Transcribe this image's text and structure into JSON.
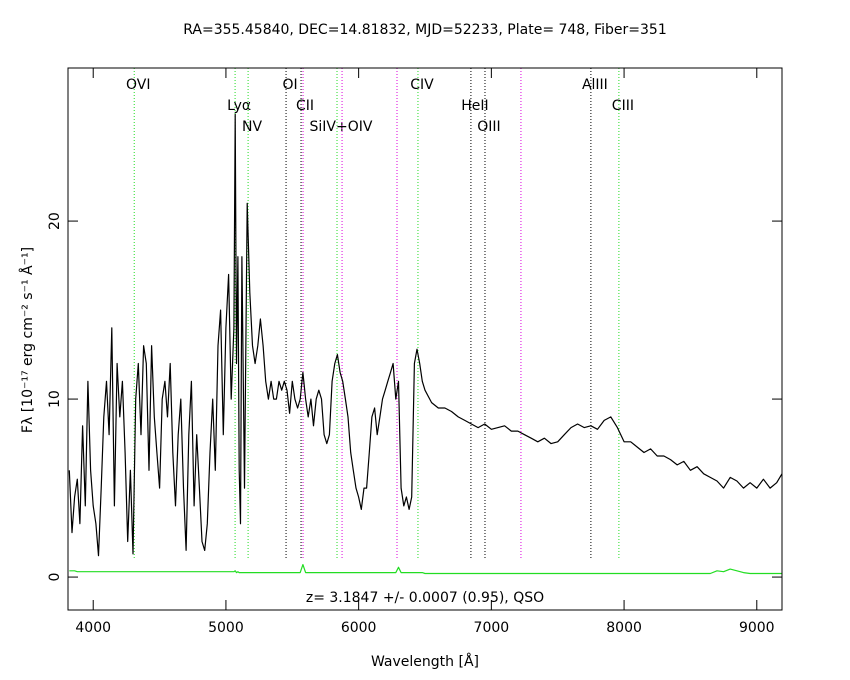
{
  "chart_data": {
    "type": "line",
    "title": "RA=355.45840, DEC=14.81832, MJD=52233, Plate=  748, Fiber=351",
    "x_label": "Wavelength [Å]",
    "y_label": "Fλ [10⁻¹⁷ erg cm⁻² s⁻¹ Å⁻¹]",
    "annotation": "z= 3.1847 +/- 0.0007 (0.95), QSO",
    "xlim": [
      3810,
      9190
    ],
    "ylim": [
      -1.85,
      28.6
    ],
    "xticks": [
      4000,
      5000,
      6000,
      7000,
      8000,
      9000
    ],
    "yticks": [
      0,
      10,
      20
    ],
    "x": [
      3820,
      3840,
      3860,
      3880,
      3900,
      3920,
      3940,
      3960,
      3980,
      4000,
      4020,
      4040,
      4060,
      4080,
      4100,
      4120,
      4140,
      4160,
      4180,
      4200,
      4220,
      4240,
      4260,
      4280,
      4300,
      4320,
      4340,
      4360,
      4380,
      4400,
      4420,
      4440,
      4460,
      4480,
      4500,
      4520,
      4540,
      4560,
      4580,
      4600,
      4620,
      4640,
      4660,
      4680,
      4700,
      4720,
      4740,
      4760,
      4780,
      4800,
      4820,
      4840,
      4860,
      4880,
      4900,
      4920,
      4940,
      4960,
      4980,
      5000,
      5020,
      5040,
      5060,
      5070,
      5080,
      5090,
      5100,
      5110,
      5120,
      5140,
      5160,
      5180,
      5200,
      5220,
      5240,
      5260,
      5280,
      5300,
      5320,
      5340,
      5360,
      5380,
      5400,
      5420,
      5440,
      5460,
      5480,
      5500,
      5520,
      5540,
      5560,
      5580,
      5600,
      5620,
      5640,
      5660,
      5680,
      5700,
      5720,
      5740,
      5760,
      5780,
      5800,
      5820,
      5840,
      5860,
      5880,
      5900,
      5920,
      5940,
      5960,
      5980,
      6000,
      6020,
      6040,
      6060,
      6080,
      6100,
      6120,
      6140,
      6160,
      6180,
      6200,
      6220,
      6240,
      6260,
      6280,
      6300,
      6320,
      6340,
      6360,
      6380,
      6400,
      6420,
      6440,
      6460,
      6480,
      6500,
      6550,
      6600,
      6650,
      6700,
      6750,
      6800,
      6850,
      6900,
      6950,
      7000,
      7050,
      7100,
      7150,
      7200,
      7250,
      7300,
      7350,
      7400,
      7450,
      7500,
      7550,
      7600,
      7650,
      7700,
      7750,
      7800,
      7850,
      7900,
      7950,
      8000,
      8050,
      8100,
      8150,
      8200,
      8250,
      8300,
      8350,
      8400,
      8450,
      8500,
      8550,
      8600,
      8650,
      8700,
      8750,
      8800,
      8850,
      8900,
      8950,
      9000,
      9050,
      9100,
      9150,
      9190
    ],
    "series": [
      {
        "color": "#000000",
        "values": [
          6.0,
          2.5,
          4.5,
          5.5,
          3.0,
          8.5,
          4.0,
          11,
          6,
          4,
          3,
          1.2,
          5,
          9,
          11,
          8,
          14,
          4,
          12,
          9,
          11,
          7,
          2,
          6,
          1.3,
          10,
          12,
          8,
          13,
          12,
          6,
          13,
          9,
          7,
          5,
          10,
          11,
          9,
          12,
          7,
          4,
          8,
          10,
          5,
          1.5,
          8,
          11,
          4,
          8,
          5,
          2,
          1.5,
          3,
          7,
          10,
          6,
          13,
          15,
          8,
          14,
          17,
          10,
          14,
          26,
          12,
          18,
          6,
          3,
          18,
          5,
          21,
          16,
          13,
          12,
          13,
          14.5,
          13,
          11,
          10,
          11,
          10,
          10,
          11,
          10.5,
          11,
          10.5,
          9.2,
          11,
          10,
          9.5,
          10,
          11.5,
          10,
          9,
          10,
          8.5,
          10,
          10.5,
          10,
          8,
          7.5,
          8,
          11,
          12,
          12.5,
          11.5,
          11,
          10,
          9,
          7,
          6,
          5,
          4.5,
          3.8,
          5,
          5,
          7,
          9,
          9.5,
          8,
          9,
          10,
          10.5,
          11,
          11.5,
          12,
          10,
          11,
          5,
          4,
          4.5,
          3.8,
          4.5,
          12,
          12.8,
          12,
          11,
          10.5,
          9.8,
          9.5,
          9.5,
          9.3,
          9.0,
          8.8,
          8.6,
          8.4,
          8.6,
          8.3,
          8.4,
          8.5,
          8.2,
          8.2,
          8.0,
          7.8,
          7.6,
          7.8,
          7.5,
          7.6,
          8.0,
          8.4,
          8.6,
          8.4,
          8.5,
          8.3,
          8.8,
          9.0,
          8.4,
          7.6,
          7.6,
          7.3,
          7.0,
          7.2,
          6.8,
          6.8,
          6.6,
          6.3,
          6.5,
          6.0,
          6.2,
          5.8,
          5.6,
          5.4,
          5.0,
          5.6,
          5.4,
          5.0,
          5.3,
          5.0,
          5.5,
          5.0,
          5.3,
          5.8
        ]
      },
      {
        "color": "#22dd22",
        "values": [
          0.35,
          0.35,
          0.35,
          0.3,
          0.3,
          0.3,
          0.3,
          0.3,
          0.3,
          0.3,
          0.3,
          0.3,
          0.3,
          0.3,
          0.3,
          0.3,
          0.3,
          0.3,
          0.3,
          0.3,
          0.3,
          0.3,
          0.3,
          0.3,
          0.3,
          0.3,
          0.3,
          0.3,
          0.3,
          0.3,
          0.3,
          0.3,
          0.3,
          0.3,
          0.3,
          0.3,
          0.3,
          0.3,
          0.3,
          0.3,
          0.3,
          0.3,
          0.3,
          0.3,
          0.3,
          0.3,
          0.3,
          0.3,
          0.3,
          0.3,
          0.3,
          0.3,
          0.3,
          0.3,
          0.3,
          0.3,
          0.3,
          0.3,
          0.3,
          0.3,
          0.3,
          0.3,
          0.3,
          0.35,
          0.25,
          0.3,
          0.25,
          0.25,
          0.25,
          0.25,
          0.25,
          0.25,
          0.25,
          0.25,
          0.25,
          0.25,
          0.25,
          0.25,
          0.25,
          0.25,
          0.25,
          0.25,
          0.25,
          0.25,
          0.25,
          0.25,
          0.25,
          0.25,
          0.25,
          0.25,
          0.25,
          0.7,
          0.25,
          0.25,
          0.25,
          0.25,
          0.25,
          0.25,
          0.25,
          0.25,
          0.25,
          0.25,
          0.25,
          0.25,
          0.25,
          0.25,
          0.25,
          0.25,
          0.25,
          0.25,
          0.25,
          0.25,
          0.25,
          0.25,
          0.25,
          0.25,
          0.25,
          0.25,
          0.25,
          0.25,
          0.25,
          0.25,
          0.25,
          0.25,
          0.25,
          0.25,
          0.25,
          0.55,
          0.25,
          0.25,
          0.25,
          0.25,
          0.25,
          0.25,
          0.25,
          0.25,
          0.25,
          0.2,
          0.2,
          0.2,
          0.2,
          0.2,
          0.2,
          0.2,
          0.2,
          0.2,
          0.2,
          0.2,
          0.2,
          0.2,
          0.2,
          0.2,
          0.2,
          0.2,
          0.2,
          0.2,
          0.2,
          0.2,
          0.2,
          0.2,
          0.2,
          0.2,
          0.2,
          0.2,
          0.2,
          0.2,
          0.2,
          0.2,
          0.2,
          0.2,
          0.2,
          0.2,
          0.2,
          0.2,
          0.2,
          0.2,
          0.2,
          0.2,
          0.2,
          0.2,
          0.2,
          0.35,
          0.3,
          0.45,
          0.35,
          0.25,
          0.2,
          0.2,
          0.2,
          0.2,
          0.2,
          0.2
        ]
      }
    ],
    "lines": [
      {
        "label": "OVI",
        "x": 4309,
        "color": "#22dd22"
      },
      {
        "label": "Lyα",
        "x": 5069,
        "color": "#22dd22"
      },
      {
        "label": "NV",
        "x": 5167,
        "color": "#22dd22"
      },
      {
        "label": "OI",
        "x": 5453,
        "color": "#000000"
      },
      {
        "label": "CII",
        "x": 5566,
        "color": "#000000"
      },
      {
        "x": 5581,
        "color": "#dd00dd"
      },
      {
        "label": "SiIV+OIV",
        "x": 5837,
        "color": "#22dd22"
      },
      {
        "x": 5875,
        "color": "#dd00dd"
      },
      {
        "x": 6289,
        "color": "#dd00dd"
      },
      {
        "label": "CIV",
        "x": 6447,
        "color": "#22dd22"
      },
      {
        "label": "HeII",
        "x": 6846,
        "color": "#000000"
      },
      {
        "label": "OIII",
        "x": 6952,
        "color": "#000000"
      },
      {
        "x": 7223,
        "color": "#dd00dd"
      },
      {
        "label": "AlIII",
        "x": 7750,
        "color": "#000000"
      },
      {
        "label": "CIII",
        "x": 7961,
        "color": "#22dd22"
      }
    ]
  }
}
